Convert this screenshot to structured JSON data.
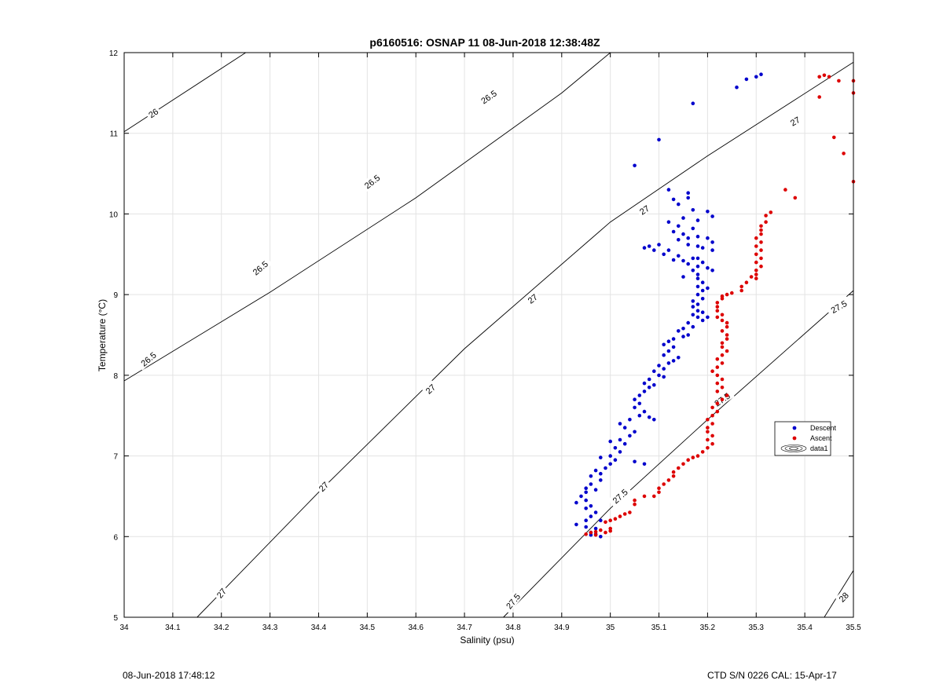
{
  "footer": {
    "timestamp": "08-Jun-2018 17:48:12",
    "instrument": "CTD S/N 0226  CAL: 15-Apr-17"
  },
  "colors": {
    "descent": "#0000cc",
    "ascent": "#dd0000",
    "contour": "#000000",
    "grid": "#e3e3e3"
  },
  "chart_data": {
    "type": "scatter",
    "title": "p6160516: OSNAP 11 08-Jun-2018 12:38:48Z",
    "xlabel": "Salinity (psu)",
    "ylabel": "Temperature (°C)",
    "xlim": [
      34,
      35.5
    ],
    "ylim": [
      5,
      12
    ],
    "xticks": [
      "34",
      "34.1",
      "34.2",
      "34.3",
      "34.4",
      "34.5",
      "34.6",
      "34.7",
      "34.8",
      "34.9",
      "35",
      "35.1",
      "35.2",
      "35.3",
      "35.4",
      "35.5"
    ],
    "yticks": [
      "5",
      "6",
      "7",
      "8",
      "9",
      "10",
      "11",
      "12"
    ],
    "grid": true,
    "legend": {
      "position": "right",
      "entries": [
        "Descent",
        "Ascent",
        "data1"
      ]
    },
    "contours": [
      {
        "level": "26",
        "points": [
          [
            34,
            11.02
          ],
          [
            34.25,
            12.0
          ]
        ]
      },
      {
        "level": "26.5",
        "points": [
          [
            34,
            7.93
          ],
          [
            34.3,
            9.03
          ],
          [
            34.6,
            10.2
          ],
          [
            34.9,
            11.5
          ],
          [
            35.0,
            12.0
          ]
        ]
      },
      {
        "level": "27",
        "points": [
          [
            34.15,
            5.0
          ],
          [
            34.4,
            6.55
          ],
          [
            34.7,
            8.33
          ],
          [
            35.0,
            9.9
          ],
          [
            35.2,
            10.72
          ],
          [
            35.5,
            11.88
          ]
        ]
      },
      {
        "level": "27.5",
        "points": [
          [
            34.78,
            5.0
          ],
          [
            35.0,
            6.35
          ],
          [
            35.2,
            7.45
          ],
          [
            35.5,
            9.05
          ]
        ]
      },
      {
        "level": "28",
        "points": [
          [
            35.44,
            5.0
          ],
          [
            35.5,
            5.58
          ]
        ]
      }
    ],
    "contour_labels": [
      {
        "text": "26",
        "x": 34.06,
        "y": 11.25,
        "angle": -35
      },
      {
        "text": "26.5",
        "x": 34.05,
        "y": 8.2,
        "angle": -40
      },
      {
        "text": "26.5",
        "x": 34.28,
        "y": 9.33,
        "angle": -40
      },
      {
        "text": "26.5",
        "x": 34.51,
        "y": 10.4,
        "angle": -38
      },
      {
        "text": "26.5",
        "x": 34.75,
        "y": 11.45,
        "angle": -35
      },
      {
        "text": "27",
        "x": 34.2,
        "y": 5.3,
        "angle": -50
      },
      {
        "text": "27",
        "x": 34.41,
        "y": 6.62,
        "angle": -45
      },
      {
        "text": "27",
        "x": 34.63,
        "y": 7.83,
        "angle": -42
      },
      {
        "text": "27",
        "x": 34.84,
        "y": 8.95,
        "angle": -38
      },
      {
        "text": "27",
        "x": 35.07,
        "y": 10.05,
        "angle": -34
      },
      {
        "text": "27",
        "x": 35.38,
        "y": 11.15,
        "angle": -30
      },
      {
        "text": "27.5",
        "x": 34.8,
        "y": 5.2,
        "angle": -50
      },
      {
        "text": "27.5",
        "x": 35.02,
        "y": 6.5,
        "angle": -42
      },
      {
        "text": "27.5",
        "x": 35.23,
        "y": 7.7,
        "angle": -35
      },
      {
        "text": "27.5",
        "x": 35.47,
        "y": 8.85,
        "angle": -30
      },
      {
        "text": "28",
        "x": 35.48,
        "y": 5.25,
        "angle": -45
      }
    ],
    "series": [
      {
        "name": "Descent",
        "color": "#0000cc",
        "points": [
          [
            35.31,
            11.73
          ],
          [
            35.3,
            11.7
          ],
          [
            35.28,
            11.67
          ],
          [
            35.26,
            11.57
          ],
          [
            35.17,
            11.37
          ],
          [
            35.1,
            10.92
          ],
          [
            35.05,
            10.6
          ],
          [
            35.12,
            10.3
          ],
          [
            35.16,
            10.26
          ],
          [
            35.16,
            10.2
          ],
          [
            35.13,
            10.18
          ],
          [
            35.14,
            10.12
          ],
          [
            35.17,
            10.05
          ],
          [
            35.2,
            10.03
          ],
          [
            35.21,
            9.97
          ],
          [
            35.15,
            9.95
          ],
          [
            35.18,
            9.92
          ],
          [
            35.12,
            9.9
          ],
          [
            35.14,
            9.85
          ],
          [
            35.17,
            9.82
          ],
          [
            35.13,
            9.78
          ],
          [
            35.15,
            9.75
          ],
          [
            35.18,
            9.72
          ],
          [
            35.16,
            9.7
          ],
          [
            35.2,
            9.7
          ],
          [
            35.21,
            9.65
          ],
          [
            35.14,
            9.68
          ],
          [
            35.16,
            9.62
          ],
          [
            35.18,
            9.6
          ],
          [
            35.08,
            9.6
          ],
          [
            35.07,
            9.58
          ],
          [
            35.09,
            9.55
          ],
          [
            35.1,
            9.62
          ],
          [
            35.12,
            9.55
          ],
          [
            35.19,
            9.58
          ],
          [
            35.21,
            9.55
          ],
          [
            35.11,
            9.5
          ],
          [
            35.14,
            9.48
          ],
          [
            35.17,
            9.45
          ],
          [
            35.13,
            9.43
          ],
          [
            35.15,
            9.42
          ],
          [
            35.18,
            9.45
          ],
          [
            35.19,
            9.4
          ],
          [
            35.16,
            9.38
          ],
          [
            35.18,
            9.35
          ],
          [
            35.2,
            9.33
          ],
          [
            35.21,
            9.3
          ],
          [
            35.17,
            9.3
          ],
          [
            35.18,
            9.25
          ],
          [
            35.15,
            9.22
          ],
          [
            35.18,
            9.2
          ],
          [
            35.19,
            9.15
          ],
          [
            35.18,
            9.1
          ],
          [
            35.2,
            9.08
          ],
          [
            35.19,
            9.05
          ],
          [
            35.18,
            9.0
          ],
          [
            35.19,
            8.95
          ],
          [
            35.17,
            8.92
          ],
          [
            35.18,
            8.88
          ],
          [
            35.17,
            8.85
          ],
          [
            35.18,
            8.8
          ],
          [
            35.19,
            8.78
          ],
          [
            35.17,
            8.75
          ],
          [
            35.18,
            8.72
          ],
          [
            35.2,
            8.72
          ],
          [
            35.19,
            8.68
          ],
          [
            35.16,
            8.65
          ],
          [
            35.17,
            8.6
          ],
          [
            35.15,
            8.58
          ],
          [
            35.14,
            8.55
          ],
          [
            35.16,
            8.5
          ],
          [
            35.15,
            8.48
          ],
          [
            35.13,
            8.45
          ],
          [
            35.12,
            8.42
          ],
          [
            35.11,
            8.38
          ],
          [
            35.13,
            8.35
          ],
          [
            35.12,
            8.3
          ],
          [
            35.11,
            8.25
          ],
          [
            35.14,
            8.22
          ],
          [
            35.13,
            8.18
          ],
          [
            35.12,
            8.15
          ],
          [
            35.1,
            8.12
          ],
          [
            35.11,
            8.08
          ],
          [
            35.09,
            8.05
          ],
          [
            35.1,
            8.0
          ],
          [
            35.11,
            7.98
          ],
          [
            35.08,
            7.95
          ],
          [
            35.07,
            7.9
          ],
          [
            35.09,
            7.88
          ],
          [
            35.08,
            7.85
          ],
          [
            35.07,
            7.8
          ],
          [
            35.06,
            7.75
          ],
          [
            35.05,
            7.7
          ],
          [
            35.06,
            7.65
          ],
          [
            35.05,
            7.6
          ],
          [
            35.07,
            7.55
          ],
          [
            35.06,
            7.5
          ],
          [
            35.08,
            7.48
          ],
          [
            35.09,
            7.45
          ],
          [
            35.04,
            7.45
          ],
          [
            35.02,
            7.4
          ],
          [
            35.03,
            7.35
          ],
          [
            35.05,
            7.3
          ],
          [
            35.04,
            7.25
          ],
          [
            35.02,
            7.2
          ],
          [
            35.0,
            7.18
          ],
          [
            35.03,
            7.15
          ],
          [
            35.01,
            7.1
          ],
          [
            35.02,
            7.05
          ],
          [
            35.0,
            7.0
          ],
          [
            34.98,
            6.98
          ],
          [
            35.01,
            6.95
          ],
          [
            35.05,
            6.93
          ],
          [
            35.07,
            6.9
          ],
          [
            35.0,
            6.9
          ],
          [
            34.99,
            6.85
          ],
          [
            34.97,
            6.82
          ],
          [
            34.98,
            6.78
          ],
          [
            34.96,
            6.75
          ],
          [
            34.98,
            6.7
          ],
          [
            34.96,
            6.65
          ],
          [
            34.95,
            6.6
          ],
          [
            34.97,
            6.58
          ],
          [
            34.95,
            6.55
          ],
          [
            34.94,
            6.5
          ],
          [
            34.95,
            6.45
          ],
          [
            34.93,
            6.42
          ],
          [
            34.96,
            6.38
          ],
          [
            34.95,
            6.35
          ],
          [
            34.97,
            6.3
          ],
          [
            34.96,
            6.25
          ],
          [
            34.95,
            6.2
          ],
          [
            34.98,
            6.2
          ],
          [
            34.93,
            6.15
          ],
          [
            34.95,
            6.12
          ],
          [
            34.97,
            6.1
          ],
          [
            34.96,
            6.05
          ],
          [
            34.97,
            6.03
          ],
          [
            34.98,
            6.0
          ],
          [
            34.96,
            6.02
          ]
        ]
      },
      {
        "name": "Ascent",
        "color": "#dd0000",
        "points": [
          [
            35.43,
            11.7
          ],
          [
            35.44,
            11.72
          ],
          [
            35.45,
            11.7
          ],
          [
            35.47,
            11.65
          ],
          [
            35.5,
            11.65
          ],
          [
            35.43,
            11.45
          ],
          [
            35.5,
            11.5
          ],
          [
            35.46,
            10.95
          ],
          [
            35.48,
            10.75
          ],
          [
            35.5,
            10.4
          ],
          [
            35.36,
            10.3
          ],
          [
            35.38,
            10.2
          ],
          [
            35.33,
            10.02
          ],
          [
            35.32,
            9.98
          ],
          [
            35.32,
            9.9
          ],
          [
            35.31,
            9.85
          ],
          [
            35.31,
            9.8
          ],
          [
            35.31,
            9.75
          ],
          [
            35.3,
            9.7
          ],
          [
            35.31,
            9.65
          ],
          [
            35.3,
            9.6
          ],
          [
            35.31,
            9.55
          ],
          [
            35.3,
            9.5
          ],
          [
            35.31,
            9.45
          ],
          [
            35.3,
            9.4
          ],
          [
            35.31,
            9.35
          ],
          [
            35.3,
            9.3
          ],
          [
            35.3,
            9.25
          ],
          [
            35.29,
            9.22
          ],
          [
            35.3,
            9.2
          ],
          [
            35.28,
            9.15
          ],
          [
            35.27,
            9.1
          ],
          [
            35.27,
            9.05
          ],
          [
            35.25,
            9.02
          ],
          [
            35.24,
            9.0
          ],
          [
            35.23,
            8.98
          ],
          [
            35.23,
            8.95
          ],
          [
            35.22,
            8.9
          ],
          [
            35.22,
            8.85
          ],
          [
            35.22,
            8.8
          ],
          [
            35.23,
            8.75
          ],
          [
            35.22,
            8.72
          ],
          [
            35.23,
            8.68
          ],
          [
            35.24,
            8.65
          ],
          [
            35.24,
            8.6
          ],
          [
            35.23,
            8.55
          ],
          [
            35.24,
            8.5
          ],
          [
            35.24,
            8.45
          ],
          [
            35.23,
            8.4
          ],
          [
            35.23,
            8.35
          ],
          [
            35.24,
            8.3
          ],
          [
            35.23,
            8.25
          ],
          [
            35.22,
            8.2
          ],
          [
            35.23,
            8.15
          ],
          [
            35.22,
            8.1
          ],
          [
            35.21,
            8.05
          ],
          [
            35.22,
            8.0
          ],
          [
            35.23,
            7.95
          ],
          [
            35.22,
            7.9
          ],
          [
            35.23,
            7.85
          ],
          [
            35.22,
            7.8
          ],
          [
            35.24,
            7.75
          ],
          [
            35.23,
            7.7
          ],
          [
            35.22,
            7.65
          ],
          [
            35.21,
            7.6
          ],
          [
            35.22,
            7.55
          ],
          [
            35.21,
            7.5
          ],
          [
            35.2,
            7.45
          ],
          [
            35.21,
            7.4
          ],
          [
            35.2,
            7.35
          ],
          [
            35.2,
            7.3
          ],
          [
            35.21,
            7.25
          ],
          [
            35.2,
            7.2
          ],
          [
            35.21,
            7.15
          ],
          [
            35.2,
            7.1
          ],
          [
            35.19,
            7.05
          ],
          [
            35.18,
            7.0
          ],
          [
            35.17,
            6.98
          ],
          [
            35.16,
            6.95
          ],
          [
            35.15,
            6.9
          ],
          [
            35.14,
            6.85
          ],
          [
            35.13,
            6.8
          ],
          [
            35.13,
            6.75
          ],
          [
            35.12,
            6.7
          ],
          [
            35.11,
            6.65
          ],
          [
            35.1,
            6.6
          ],
          [
            35.1,
            6.55
          ],
          [
            35.09,
            6.5
          ],
          [
            35.07,
            6.5
          ],
          [
            35.05,
            6.45
          ],
          [
            35.05,
            6.4
          ],
          [
            35.04,
            6.3
          ],
          [
            35.03,
            6.28
          ],
          [
            35.02,
            6.25
          ],
          [
            35.01,
            6.22
          ],
          [
            35.0,
            6.2
          ],
          [
            34.99,
            6.18
          ],
          [
            35.0,
            6.1
          ],
          [
            34.98,
            6.08
          ],
          [
            34.97,
            6.06
          ],
          [
            34.96,
            6.05
          ],
          [
            34.95,
            6.03
          ],
          [
            34.97,
            6.02
          ],
          [
            34.99,
            6.05
          ],
          [
            35.0,
            6.07
          ]
        ]
      }
    ]
  }
}
